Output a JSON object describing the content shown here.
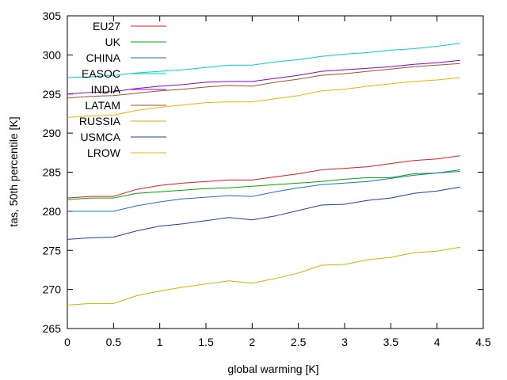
{
  "chart_data": {
    "type": "line",
    "title": "",
    "xlabel": "global warming [K]",
    "ylabel": "tas, 50th percentile [K]",
    "xlim": [
      0,
      4.5
    ],
    "ylim": [
      265,
      305
    ],
    "xticks": [
      "0",
      "0.5",
      "1",
      "1.5",
      "2",
      "2.5",
      "3",
      "3.5",
      "4",
      "4.5"
    ],
    "yticks": [
      "265",
      "270",
      "275",
      "280",
      "285",
      "290",
      "295",
      "300",
      "305"
    ],
    "grid": false,
    "legend_position": "top-left",
    "x": [
      0,
      0.25,
      0.5,
      0.75,
      1.0,
      1.25,
      1.5,
      1.75,
      2.0,
      2.25,
      2.5,
      2.75,
      3.0,
      3.25,
      3.5,
      3.75,
      4.0,
      4.25
    ],
    "series": [
      {
        "name": "EU27",
        "color": "#e41a1c",
        "values": [
          281.7,
          281.9,
          281.9,
          282.8,
          283.3,
          283.6,
          283.8,
          284.0,
          284.0,
          284.4,
          284.8,
          285.3,
          285.5,
          285.7,
          286.1,
          286.5,
          286.7,
          287.1
        ]
      },
      {
        "name": "UK",
        "color": "#00a800",
        "values": [
          281.5,
          281.7,
          281.7,
          282.3,
          282.5,
          282.7,
          282.9,
          283.0,
          283.2,
          283.4,
          283.6,
          283.8,
          284.1,
          284.3,
          284.3,
          284.8,
          284.9,
          285.1
        ]
      },
      {
        "name": "CHINA",
        "color": "#1e6fd0",
        "values": [
          280.0,
          280.0,
          280.0,
          280.7,
          281.2,
          281.6,
          281.8,
          282.0,
          281.9,
          282.5,
          283.0,
          283.4,
          283.6,
          283.8,
          284.2,
          284.6,
          284.9,
          285.3
        ]
      },
      {
        "name": "EASOC",
        "color": "#00d0d0",
        "values": [
          297.1,
          297.2,
          297.4,
          297.7,
          297.9,
          298.1,
          298.4,
          298.7,
          298.7,
          299.1,
          299.4,
          299.8,
          300.1,
          300.3,
          300.6,
          300.8,
          301.1,
          301.5
        ]
      },
      {
        "name": "INDIA",
        "color": "#9400d3",
        "values": [
          295.0,
          295.2,
          295.3,
          295.7,
          296.0,
          296.2,
          296.5,
          296.6,
          296.6,
          297.0,
          297.4,
          297.9,
          298.1,
          298.3,
          298.5,
          298.8,
          299.0,
          299.3
        ]
      },
      {
        "name": "LATAM",
        "color": "#a0522d",
        "values": [
          294.5,
          294.7,
          294.8,
          295.1,
          295.4,
          295.6,
          295.9,
          296.1,
          296.0,
          296.5,
          296.9,
          297.4,
          297.6,
          297.9,
          298.2,
          298.5,
          298.7,
          298.9
        ]
      },
      {
        "name": "RUSSIA",
        "color": "#d4b000",
        "values": [
          268.0,
          268.2,
          268.2,
          269.2,
          269.8,
          270.3,
          270.7,
          271.1,
          270.8,
          271.4,
          272.1,
          273.1,
          273.2,
          273.8,
          274.1,
          274.7,
          274.9,
          275.4
        ]
      },
      {
        "name": "USMCA",
        "color": "#1c3fa8",
        "values": [
          276.4,
          276.6,
          276.7,
          277.5,
          278.1,
          278.4,
          278.8,
          279.2,
          278.9,
          279.4,
          280.1,
          280.8,
          280.9,
          281.4,
          281.7,
          282.3,
          282.6,
          283.1
        ]
      },
      {
        "name": "LROW",
        "color": "#f0b000",
        "values": [
          292.0,
          292.2,
          292.3,
          292.9,
          293.3,
          293.6,
          293.9,
          294.0,
          294.0,
          294.4,
          294.8,
          295.4,
          295.6,
          296.0,
          296.3,
          296.6,
          296.8,
          297.1
        ]
      }
    ]
  }
}
